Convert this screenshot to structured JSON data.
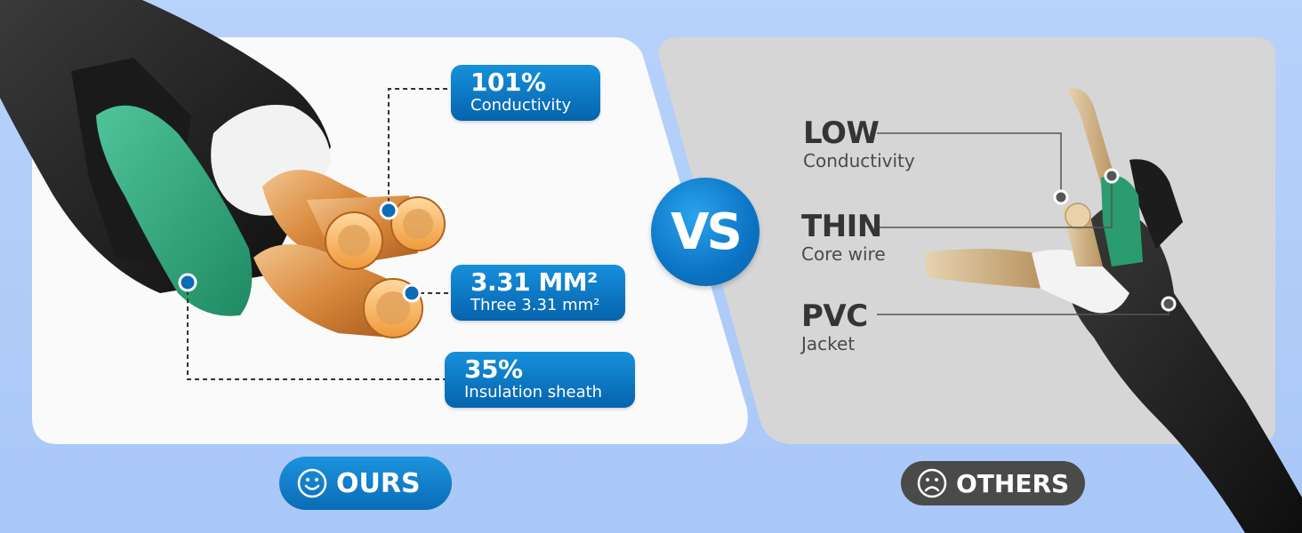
{
  "ours": {
    "badge_label": "OURS",
    "badge_icon": "smile-icon",
    "callouts": [
      {
        "value": "101%",
        "label": "Conductivity"
      },
      {
        "value": "3.31 MM²",
        "label": "Three 3.31 mm²"
      },
      {
        "value": "35%",
        "label": "Insulation sheath"
      }
    ]
  },
  "vs_label": "VS",
  "others": {
    "badge_label": "OTHERS",
    "badge_icon": "frown-icon",
    "callouts": [
      {
        "value": "LOW",
        "label": "Conductivity"
      },
      {
        "value": "THIN",
        "label": "Core wire"
      },
      {
        "value": "PVC",
        "label": "Jacket"
      }
    ]
  },
  "colors": {
    "background": "#b0cdf9",
    "ours_panel": "#fafafa",
    "others_panel": "#d6d6d6",
    "accent_blue": "#0b74c4",
    "others_badge": "#4a4a4a"
  }
}
